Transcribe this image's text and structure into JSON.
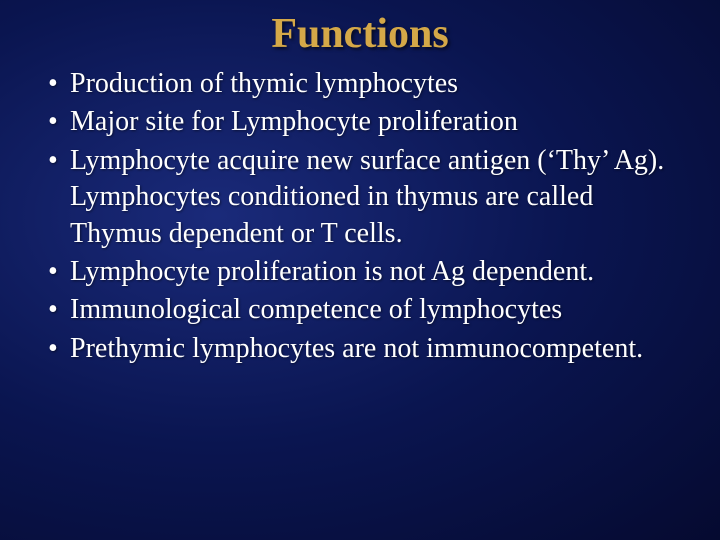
{
  "slide": {
    "title": "Functions",
    "bullets": [
      "Production of thymic lymphocytes",
      "Major site for Lymphocyte proliferation",
      "Lymphocyte acquire new surface antigen (‘Thy’ Ag). Lymphocytes conditioned in thymus are called Thymus dependent or T cells.",
      "Lymphocyte proliferation is not Ag dependent.",
      "Immunological competence of lymphocytes",
      "Prethymic lymphocytes are not immunocompetent."
    ]
  },
  "style": {
    "background_gradient_inner": "#1a2a7a",
    "background_gradient_mid": "#0a1550",
    "background_gradient_outer": "#050a30",
    "title_color": "#d4a848",
    "text_color": "#ffffff",
    "title_fontsize": 42,
    "body_fontsize": 28,
    "font_family": "Times New Roman"
  }
}
